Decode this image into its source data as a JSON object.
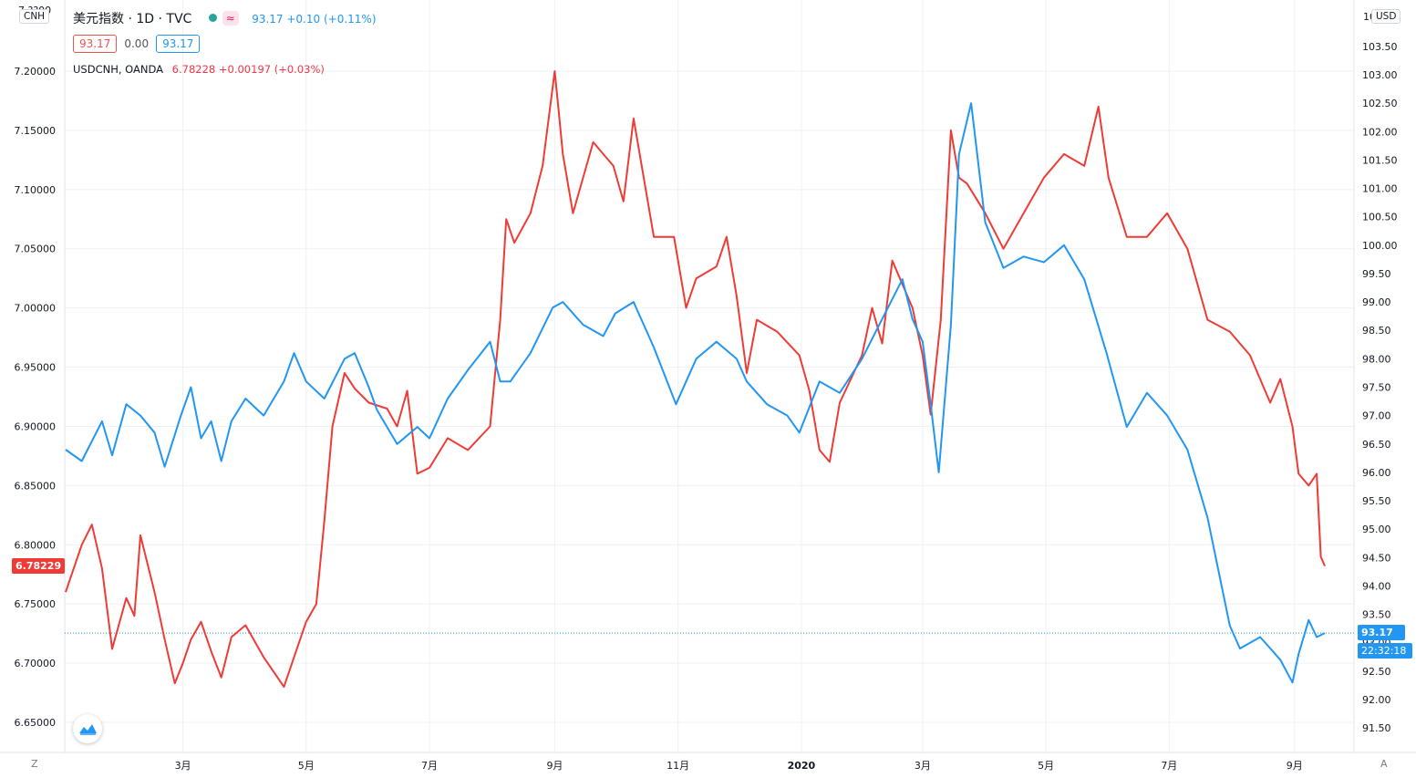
{
  "header": {
    "main_symbol": "美元指数 · 1D · TVC",
    "main_values": "93.17 +0.10 (+0.11%)",
    "wave_icon": "≈",
    "status_icon": "green-dot-icon",
    "price_box_sell": "93.17",
    "price_box_spread": "0.00",
    "price_box_buy": "93.17",
    "overlay_symbol": "USDCNH, OANDA",
    "overlay_values": "6.78228 +0.00197 (+0.03%)"
  },
  "left_scale": {
    "unit_label": "CNH",
    "top_cut": "7.??00"
  },
  "right_scale": {
    "unit_label": "USD",
    "top_cut": "10"
  },
  "price_labels": {
    "usdcnh": "6.78229",
    "dxy": "93.17",
    "countdown": "22:32:18"
  },
  "corners": {
    "zoom": "Z",
    "auto": "A"
  },
  "colors": {
    "usdcnh": "#ef3b36",
    "dxy": "#2196f3",
    "grid": "#eef0f3"
  },
  "chart_data": {
    "type": "line",
    "x_tick_labels": [
      "3月",
      "5月",
      "7月",
      "9月",
      "11月",
      "2020",
      "3月",
      "5月",
      "7月",
      "9月"
    ],
    "left_axis": {
      "ticks": [
        "7.20000",
        "7.15000",
        "7.10000",
        "7.05000",
        "7.00000",
        "6.95000",
        "6.90000",
        "6.85000",
        "6.80000",
        "6.75000",
        "6.70000",
        "6.65000"
      ],
      "range": [
        6.62,
        7.25
      ]
    },
    "right_axis": {
      "ticks": [
        "103.50",
        "103.00",
        "102.50",
        "102.00",
        "101.50",
        "101.00",
        "100.50",
        "100.00",
        "99.50",
        "99.00",
        "98.50",
        "98.00",
        "97.50",
        "97.00",
        "96.50",
        "96.00",
        "95.50",
        "95.00",
        "94.50",
        "94.00",
        "93.50",
        "93.00",
        "92.50",
        "92.00",
        "91.50"
      ],
      "range": [
        91.0,
        104.0
      ]
    },
    "series": [
      {
        "name": "USDCNH, OANDA",
        "axis": "left",
        "x": [
          "2019-01-02",
          "2019-01-10",
          "2019-01-15",
          "2019-01-20",
          "2019-01-25",
          "2019-02-01",
          "2019-02-05",
          "2019-02-08",
          "2019-02-15",
          "2019-02-20",
          "2019-02-25",
          "2019-03-01",
          "2019-03-05",
          "2019-03-10",
          "2019-03-15",
          "2019-03-20",
          "2019-03-25",
          "2019-04-01",
          "2019-04-10",
          "2019-04-20",
          "2019-04-25",
          "2019-05-01",
          "2019-05-06",
          "2019-05-10",
          "2019-05-14",
          "2019-05-20",
          "2019-05-25",
          "2019-06-01",
          "2019-06-10",
          "2019-06-15",
          "2019-06-20",
          "2019-06-25",
          "2019-07-01",
          "2019-07-10",
          "2019-07-20",
          "2019-07-31",
          "2019-08-05",
          "2019-08-08",
          "2019-08-12",
          "2019-08-20",
          "2019-08-26",
          "2019-09-01",
          "2019-09-03",
          "2019-09-05",
          "2019-09-10",
          "2019-09-20",
          "2019-09-30",
          "2019-10-05",
          "2019-10-10",
          "2019-10-20",
          "2019-10-30",
          "2019-11-05",
          "2019-11-10",
          "2019-11-20",
          "2019-11-25",
          "2019-11-30",
          "2019-12-05",
          "2019-12-10",
          "2019-12-20",
          "2019-12-31",
          "2020-01-05",
          "2020-01-10",
          "2020-01-15",
          "2020-01-20",
          "2020-01-31",
          "2020-02-05",
          "2020-02-10",
          "2020-02-15",
          "2020-02-25",
          "2020-03-01",
          "2020-03-05",
          "2020-03-10",
          "2020-03-15",
          "2020-03-19",
          "2020-03-23",
          "2020-04-01",
          "2020-04-10",
          "2020-04-20",
          "2020-04-30",
          "2020-05-10",
          "2020-05-20",
          "2020-05-27",
          "2020-06-01",
          "2020-06-10",
          "2020-06-20",
          "2020-06-30",
          "2020-07-10",
          "2020-07-20",
          "2020-07-31",
          "2020-08-10",
          "2020-08-20",
          "2020-08-25",
          "2020-08-31",
          "2020-09-03",
          "2020-09-08",
          "2020-09-12",
          "2020-09-14",
          "2020-09-16"
        ],
        "y": [
          6.76,
          6.8,
          6.817,
          6.78,
          6.712,
          6.755,
          6.74,
          6.808,
          6.76,
          6.72,
          6.683,
          6.7,
          6.72,
          6.735,
          6.71,
          6.688,
          6.722,
          6.732,
          6.705,
          6.68,
          6.705,
          6.735,
          6.75,
          6.82,
          6.9,
          6.945,
          6.932,
          6.92,
          6.915,
          6.9,
          6.93,
          6.86,
          6.865,
          6.89,
          6.88,
          6.9,
          6.99,
          7.075,
          7.055,
          7.08,
          7.12,
          7.2,
          7.165,
          7.13,
          7.08,
          7.14,
          7.12,
          7.09,
          7.16,
          7.06,
          7.06,
          7.0,
          7.025,
          7.035,
          7.06,
          7.01,
          6.945,
          6.99,
          6.98,
          6.96,
          6.93,
          6.88,
          6.87,
          6.92,
          6.96,
          7.0,
          6.97,
          7.04,
          7.0,
          6.96,
          6.91,
          6.99,
          7.15,
          7.11,
          7.105,
          7.08,
          7.05,
          7.08,
          7.11,
          7.13,
          7.12,
          7.17,
          7.11,
          7.06,
          7.06,
          7.08,
          7.05,
          6.99,
          6.98,
          6.96,
          6.92,
          6.94,
          6.9,
          6.86,
          6.85,
          6.86,
          6.79,
          6.782
        ]
      },
      {
        "name": "美元指数",
        "axis": "right",
        "x": [
          "2019-01-02",
          "2019-01-10",
          "2019-01-20",
          "2019-01-25",
          "2019-02-01",
          "2019-02-08",
          "2019-02-15",
          "2019-02-20",
          "2019-02-28",
          "2019-03-05",
          "2019-03-10",
          "2019-03-15",
          "2019-03-20",
          "2019-03-25",
          "2019-04-01",
          "2019-04-10",
          "2019-04-20",
          "2019-04-25",
          "2019-05-01",
          "2019-05-10",
          "2019-05-20",
          "2019-05-25",
          "2019-06-01",
          "2019-06-05",
          "2019-06-15",
          "2019-06-25",
          "2019-07-01",
          "2019-07-10",
          "2019-07-20",
          "2019-07-31",
          "2019-08-05",
          "2019-08-10",
          "2019-08-20",
          "2019-08-31",
          "2019-09-05",
          "2019-09-15",
          "2019-09-25",
          "2019-10-01",
          "2019-10-10",
          "2019-10-20",
          "2019-10-31",
          "2019-11-10",
          "2019-11-20",
          "2019-11-30",
          "2019-12-05",
          "2019-12-15",
          "2019-12-25",
          "2019-12-31",
          "2020-01-10",
          "2020-01-20",
          "2020-01-31",
          "2020-02-10",
          "2020-02-20",
          "2020-02-25",
          "2020-03-01",
          "2020-03-05",
          "2020-03-09",
          "2020-03-15",
          "2020-03-19",
          "2020-03-25",
          "2020-04-01",
          "2020-04-10",
          "2020-04-20",
          "2020-04-30",
          "2020-05-10",
          "2020-05-20",
          "2020-05-31",
          "2020-06-10",
          "2020-06-20",
          "2020-06-30",
          "2020-07-10",
          "2020-07-20",
          "2020-07-31",
          "2020-08-05",
          "2020-08-15",
          "2020-08-25",
          "2020-08-31",
          "2020-09-03",
          "2020-09-08",
          "2020-09-12",
          "2020-09-16"
        ],
        "y": [
          96.4,
          96.2,
          96.9,
          96.3,
          97.2,
          97.0,
          96.7,
          96.1,
          97.0,
          97.5,
          96.6,
          96.9,
          96.2,
          96.9,
          97.3,
          97.0,
          97.6,
          98.1,
          97.6,
          97.3,
          98.0,
          98.1,
          97.5,
          97.1,
          96.5,
          96.8,
          96.6,
          97.3,
          97.8,
          98.3,
          97.6,
          97.6,
          98.1,
          98.9,
          99.0,
          98.6,
          98.4,
          98.8,
          99.0,
          98.2,
          97.2,
          98.0,
          98.3,
          98.0,
          97.6,
          97.2,
          97.0,
          96.7,
          97.6,
          97.4,
          98.0,
          98.7,
          99.4,
          98.7,
          98.3,
          97.2,
          96.0,
          98.6,
          101.6,
          102.5,
          100.4,
          99.6,
          99.8,
          99.7,
          100.0,
          99.4,
          98.1,
          96.8,
          97.4,
          97.0,
          96.4,
          95.2,
          93.3,
          92.9,
          93.1,
          92.7,
          92.3,
          92.8,
          93.4,
          93.1,
          93.17
        ]
      }
    ]
  }
}
